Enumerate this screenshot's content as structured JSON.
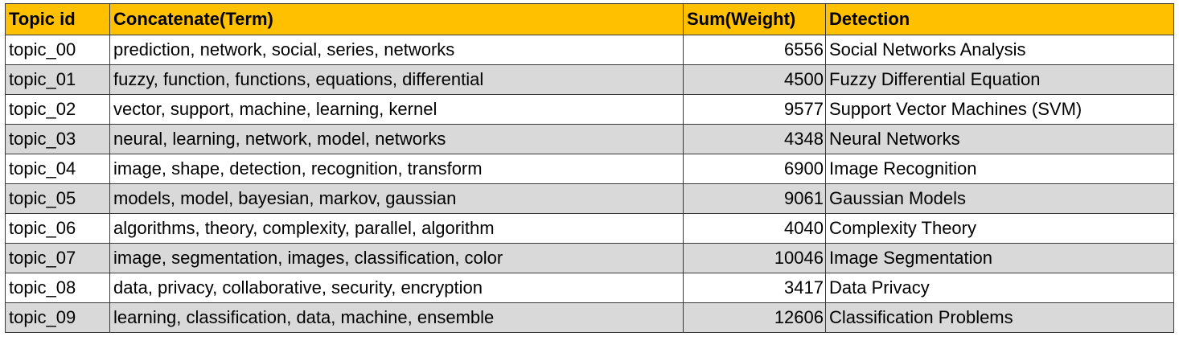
{
  "colors": {
    "header_bg": "#ffc000",
    "shaded_row_bg": "#d9d9d9",
    "plain_row_bg": "#ffffff",
    "grid": "#3a3a3a"
  },
  "headers": [
    "Topic id",
    "Concatenate(Term)",
    "Sum(Weight)",
    "Detection"
  ],
  "rows": [
    [
      "topic_00",
      "prediction, network, social, series, networks",
      "6556",
      "Social Networks Analysis"
    ],
    [
      "topic_01",
      "fuzzy, function, functions, equations, differential",
      "4500",
      "Fuzzy Differential Equation"
    ],
    [
      "topic_02",
      "vector, support, machine, learning, kernel",
      "9577",
      "Support Vector Machines (SVM)"
    ],
    [
      "topic_03",
      "neural, learning, network, model, networks",
      "4348",
      "Neural Networks"
    ],
    [
      "topic_04",
      "image, shape, detection, recognition, transform",
      "6900",
      "Image Recognition"
    ],
    [
      "topic_05",
      "models, model, bayesian, markov, gaussian",
      "9061",
      "Gaussian Models"
    ],
    [
      "topic_06",
      "algorithms, theory, complexity, parallel, algorithm",
      "4040",
      "Complexity Theory"
    ],
    [
      "topic_07",
      "image, segmentation, images, classification, color",
      "10046",
      "Image Segmentation"
    ],
    [
      "topic_08",
      "data, privacy, collaborative, security, encryption",
      "3417",
      "Data Privacy"
    ],
    [
      "topic_09",
      "learning, classification, data, machine, ensemble",
      "12606",
      "Classification Problems"
    ]
  ]
}
